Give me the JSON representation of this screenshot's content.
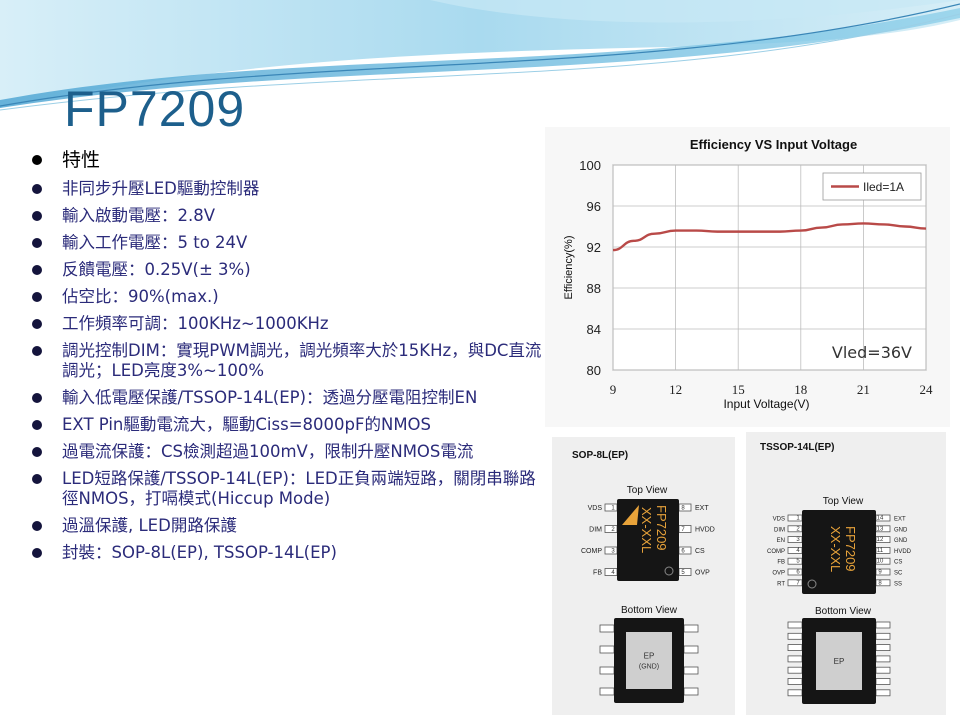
{
  "slide": {
    "title": "FP7209",
    "bullets": [
      {
        "text": "特性",
        "heading": true
      },
      {
        "text": "非同步升壓LED驅動控制器"
      },
      {
        "text": "輸入啟動電壓：2.8V"
      },
      {
        "text": "輸入工作電壓：5 to 24V"
      },
      {
        "text": "反饋電壓：0.25V(± 3%)"
      },
      {
        "text": "佔空比：90%(max.)"
      },
      {
        "text": "工作頻率可調：100KHz~1000KHz"
      },
      {
        "text": "調光控制DIM：實現PWM調光，調光頻率大於15KHz，與DC直流調光；LED亮度3%~100%"
      },
      {
        "text": "輸入低電壓保護/TSSOP-14L(EP)：透過分壓電阻控制EN"
      },
      {
        "text": "EXT Pin驅動電流大，驅動Ciss=8000pF的NMOS"
      },
      {
        "text": "過電流保護：CS檢測超過100mV，限制升壓NMOS電流"
      },
      {
        "text": "LED短路保護/TSSOP-14L(EP)：LED正負兩端短路，關閉串聯路徑NMOS，打嗝模式(Hiccup Mode)"
      },
      {
        "text": "過溫保護, LED開路保護"
      },
      {
        "text": "封裝：SOP-8L(EP), TSSOP-14L(EP)"
      }
    ]
  },
  "chart_data": {
    "type": "line",
    "title": "Efficiency VS Input Voltage",
    "xlabel": "Input Voltage(V)",
    "ylabel": "Efficiency(%)",
    "xlim": [
      9,
      24
    ],
    "ylim": [
      80,
      100
    ],
    "xticks": [
      9,
      12,
      15,
      18,
      21,
      24
    ],
    "yticks": [
      80,
      84,
      88,
      92,
      96,
      100
    ],
    "grid": true,
    "legend_position": "top-right",
    "annotation": "Vled=36V",
    "series": [
      {
        "name": "Iled=1A",
        "color": "#b94a48",
        "x": [
          9,
          10,
          11,
          12,
          13,
          14,
          15,
          16,
          17,
          18,
          19,
          20,
          21,
          22,
          23,
          24
        ],
        "y": [
          91.7,
          92.6,
          93.3,
          93.6,
          93.6,
          93.5,
          93.5,
          93.5,
          93.5,
          93.6,
          93.9,
          94.2,
          94.3,
          94.2,
          94.0,
          93.8
        ]
      }
    ]
  },
  "packages": {
    "sop8": {
      "title": "SOP-8L(EP)",
      "top_view": "Top View",
      "bottom_view": "Bottom View",
      "chip_marking": [
        "FP7209",
        "XX-XXL"
      ],
      "left_pins": [
        {
          "name": "VDS",
          "num": "1"
        },
        {
          "name": "DIM",
          "num": "2"
        },
        {
          "name": "COMP",
          "num": "3"
        },
        {
          "name": "FB",
          "num": "4"
        }
      ],
      "right_pins": [
        {
          "name": "EXT",
          "num": "8"
        },
        {
          "name": "HVDD",
          "num": "7"
        },
        {
          "name": "CS",
          "num": "6"
        },
        {
          "name": "OVP",
          "num": "5"
        }
      ],
      "pad_label_1": "EP",
      "pad_label_2": "(GND)"
    },
    "tssop14": {
      "title": "TSSOP-14L(EP)",
      "top_view": "Top View",
      "bottom_view": "Bottom View",
      "chip_marking": [
        "FP7209",
        "XX-XXL"
      ],
      "left_pins": [
        {
          "name": "VDS",
          "num": "1"
        },
        {
          "name": "DIM",
          "num": "2"
        },
        {
          "name": "EN",
          "num": "3"
        },
        {
          "name": "COMP",
          "num": "4"
        },
        {
          "name": "FB",
          "num": "5"
        },
        {
          "name": "OVP",
          "num": "6"
        },
        {
          "name": "RT",
          "num": "7"
        }
      ],
      "right_pins": [
        {
          "name": "EXT",
          "num": "14"
        },
        {
          "name": "GND",
          "num": "13"
        },
        {
          "name": "GND",
          "num": "12"
        },
        {
          "name": "HVDD",
          "num": "11"
        },
        {
          "name": "CS",
          "num": "10"
        },
        {
          "name": "SC",
          "num": "9"
        },
        {
          "name": "SS",
          "num": "8"
        }
      ],
      "pad_label": "EP"
    }
  },
  "colors": {
    "title": "#1d5f8c",
    "bullet_text": "#2b2b7a",
    "series_line": "#b94a48",
    "banner_light": "#bfe3f2",
    "banner_mid": "#7ec8e6"
  }
}
